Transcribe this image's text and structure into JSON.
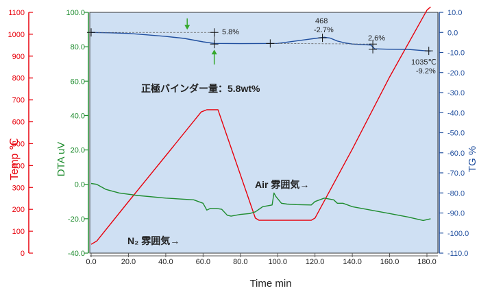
{
  "chart_data": {
    "type": "line",
    "x_axis": {
      "label": "Time min",
      "min": 0,
      "max": 180,
      "ticks": [
        "0.0",
        "20.0",
        "40.0",
        "60.0",
        "80.0",
        "100.0",
        "120.0",
        "140.0",
        "160.0",
        "180.0"
      ]
    },
    "axes": {
      "temp": {
        "label": "Temp ℃",
        "min": 0,
        "max": 1100,
        "color": "#e8000b",
        "ticks": [
          "0",
          "100",
          "200",
          "300",
          "400",
          "500",
          "600",
          "700",
          "800",
          "900",
          "1000",
          "1100"
        ]
      },
      "dta": {
        "label": "DTA uV",
        "min": -40,
        "max": 100,
        "color": "#1e8c2e",
        "ticks": [
          "-40.0",
          "-20.0",
          "0.0",
          "20.0",
          "40.0",
          "60.0",
          "80.0",
          "100.0"
        ]
      },
      "tg": {
        "label": "TG %",
        "min": -110,
        "max": 10,
        "color": "#1f4e9e",
        "ticks": [
          "-110.0",
          "-100.0",
          "-90.0",
          "-80.0",
          "-70.0",
          "-60.0",
          "-50.0",
          "-40.0",
          "-30.0",
          "-20.0",
          "-10.0",
          "0.0",
          "10.0"
        ]
      }
    },
    "series": [
      {
        "axis": "temp",
        "color": "#e8000b",
        "x": [
          0,
          3,
          20,
          40,
          59,
          62,
          68,
          88,
          90,
          100,
          118,
          120,
          140,
          160,
          180,
          182
        ],
        "y": [
          40,
          55,
          235,
          445,
          645,
          655,
          655,
          160,
          150,
          150,
          150,
          160,
          475,
          805,
          1110,
          1125
        ]
      },
      {
        "axis": "dta",
        "color": "#1e8c2e",
        "x": [
          0,
          3,
          8,
          15,
          25,
          40,
          55,
          60,
          62,
          64,
          67,
          70,
          73,
          75,
          80,
          85,
          88,
          92,
          97,
          98,
          99,
          102,
          105,
          110,
          118,
          120,
          125,
          130,
          132,
          135,
          140,
          150,
          160,
          170,
          178,
          182
        ],
        "y": [
          0.5,
          0,
          -3,
          -5,
          -6.5,
          -8,
          -9,
          -11,
          -15,
          -14,
          -14,
          -14.5,
          -18,
          -18.5,
          -17.5,
          -17,
          -16,
          -13,
          -12,
          -5,
          -7,
          -11,
          -11.5,
          -11.8,
          -12,
          -10,
          -8,
          -9,
          -11,
          -11,
          -13,
          -15,
          -17,
          -19,
          -21,
          -20
        ]
      },
      {
        "axis": "tg",
        "color": "#1f4e9e",
        "x": [
          0,
          10,
          20,
          30,
          40,
          50,
          60,
          66,
          80,
          100,
          115,
          120,
          125,
          128,
          132,
          136,
          140,
          150,
          152,
          160,
          170,
          180,
          182
        ],
        "y": [
          0,
          -0.2,
          -0.5,
          -1.2,
          -2,
          -3,
          -4.7,
          -5.5,
          -5.6,
          -5.5,
          -3.6,
          -3,
          -2.4,
          -2.8,
          -4.3,
          -5.2,
          -5.8,
          -6.3,
          -8.2,
          -8.4,
          -8.5,
          -9.2,
          -9.3
        ]
      }
    ],
    "markers": [
      {
        "x": 0,
        "tg": 0
      },
      {
        "x": 66,
        "tg": 0
      },
      {
        "x": 66,
        "tg": -5.8
      },
      {
        "x": 96,
        "tg": -5.5
      },
      {
        "x": 124,
        "tg": -2.7
      },
      {
        "x": 151,
        "tg": -5.8
      },
      {
        "x": 151,
        "tg": -8.4
      },
      {
        "x": 181,
        "tg": -9.2
      }
    ],
    "annotations": {
      "binder_drop": "5.8%",
      "peak": [
        "468",
        "-2.7%"
      ],
      "second_drop": "2.6%",
      "final": [
        "1035℃",
        "-9.2%"
      ],
      "binder_amount": "正極バインダー量：5.8wt%",
      "air_atmosphere": "Air 雰囲気→",
      "n2_atmosphere": "N₂ 雰囲気→"
    },
    "grid": false,
    "background": "#cfe0f3",
    "arrow_color": "#35a82c"
  }
}
